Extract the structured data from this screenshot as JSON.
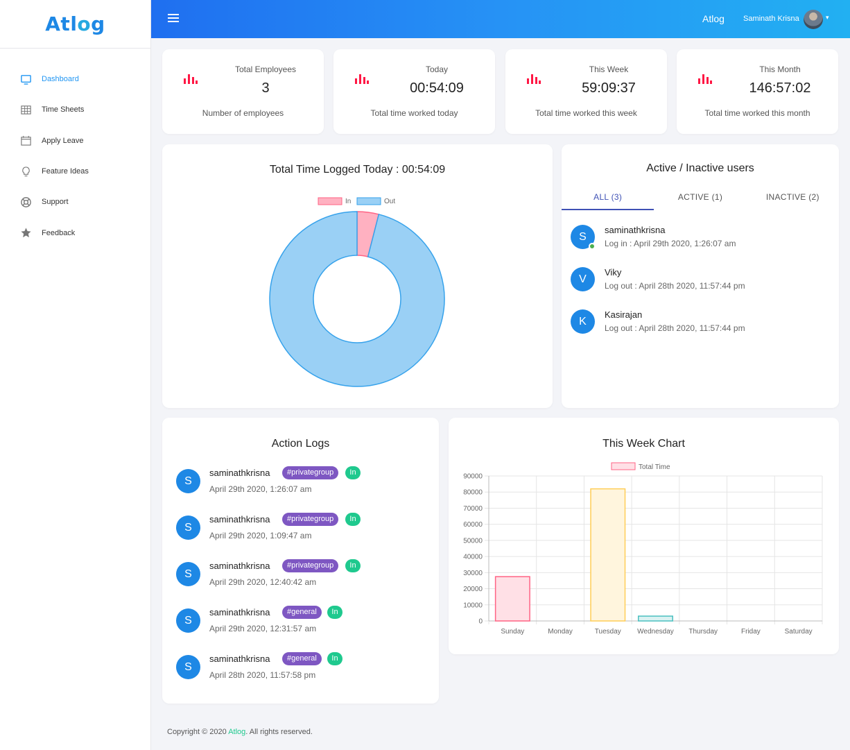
{
  "app": {
    "logo_prefix": "Atl",
    "logo_o": "o",
    "logo_suffix": "g",
    "name": "Atlog",
    "user": "Saminath Krisna"
  },
  "sidebar": {
    "items": [
      {
        "label": "Dashboard",
        "icon": "monitor-icon"
      },
      {
        "label": "Time Sheets",
        "icon": "table-icon"
      },
      {
        "label": "Apply Leave",
        "icon": "calendar-icon"
      },
      {
        "label": "Feature Ideas",
        "icon": "lightbulb-icon"
      },
      {
        "label": "Support",
        "icon": "lifebuoy-icon"
      },
      {
        "label": "Feedback",
        "icon": "star-icon"
      }
    ]
  },
  "stats": [
    {
      "title": "Total Employees",
      "value": "3",
      "sub": "Number of employees"
    },
    {
      "title": "Today",
      "value": "00:54:09",
      "sub": "Total time worked today"
    },
    {
      "title": "This Week",
      "value": "59:09:37",
      "sub": "Total time worked this week"
    },
    {
      "title": "This Month",
      "value": "146:57:02",
      "sub": "Total time worked this month"
    }
  ],
  "colors": {
    "accent": "#2196f3",
    "stat_icon": "#ff1744",
    "tag": "#7e57c2",
    "status_in": "#1fc98e",
    "in_fill": "#ffb1c1",
    "out_fill": "#9ad0f5"
  },
  "donut": {
    "title": "Total Time Logged Today : 00:54:09",
    "legend_in": "In",
    "legend_out": "Out"
  },
  "users": {
    "title": "Active / Inactive users",
    "tabs": [
      "ALL (3)",
      "ACTIVE (1)",
      "INACTIVE (2)"
    ],
    "list": [
      {
        "initial": "S",
        "name": "saminathkrisna",
        "status": "Log in : April 29th 2020, 1:26:07 am"
      },
      {
        "initial": "V",
        "name": "Viky",
        "status": "Log out : April 28th 2020, 11:57:44 pm"
      },
      {
        "initial": "K",
        "name": "Kasirajan",
        "status": "Log out : April 28th 2020, 11:57:44 pm"
      }
    ]
  },
  "logs": {
    "title": "Action Logs",
    "items": [
      {
        "initial": "S",
        "name": "saminathkrisna",
        "tag": "#privategroup",
        "status": "In",
        "time": "April 29th 2020, 1:26:07 am"
      },
      {
        "initial": "S",
        "name": "saminathkrisna",
        "tag": "#privategroup",
        "status": "In",
        "time": "April 29th 2020, 1:09:47 am"
      },
      {
        "initial": "S",
        "name": "saminathkrisna",
        "tag": "#privategroup",
        "status": "In",
        "time": "April 29th 2020, 12:40:42 am"
      },
      {
        "initial": "S",
        "name": "saminathkrisna",
        "tag": "#general",
        "status": "In",
        "time": "April 29th 2020, 12:31:57 am"
      },
      {
        "initial": "S",
        "name": "saminathkrisna",
        "tag": "#general",
        "status": "In",
        "time": "April 28th 2020, 11:57:58 pm"
      }
    ]
  },
  "chart_data": [
    {
      "type": "pie",
      "title": "Total Time Logged Today : 00:54:09",
      "labels": [
        "In",
        "Out"
      ],
      "values": [
        4,
        96
      ],
      "legend": "top"
    },
    {
      "type": "bar",
      "title": "This Week Chart",
      "categories": [
        "Sunday",
        "Monday",
        "Tuesday",
        "Wednesday",
        "Thursday",
        "Friday",
        "Saturday"
      ],
      "series": [
        {
          "name": "Total Time",
          "values": [
            27500,
            0,
            82000,
            3000,
            0,
            0,
            0
          ]
        }
      ],
      "ylim": [
        0,
        90000
      ],
      "yticks": [
        0,
        10000,
        20000,
        30000,
        40000,
        50000,
        60000,
        70000,
        80000,
        90000
      ],
      "bar_fills": [
        "#ffe0e6",
        "#ffe0e6",
        "#fff5dd",
        "#dbf2f2",
        "#ffe0e6",
        "#ffe0e6",
        "#ffe0e6"
      ],
      "bar_strokes": [
        "#ff6384",
        "#ff6384",
        "#ffcd56",
        "#4bc0c0",
        "#ff6384",
        "#ff6384",
        "#ff6384"
      ],
      "legend": "top"
    }
  ],
  "footer": {
    "prefix": "Copyright © 2020 ",
    "brand": "Atlog",
    "suffix": ". All rights reserved."
  }
}
